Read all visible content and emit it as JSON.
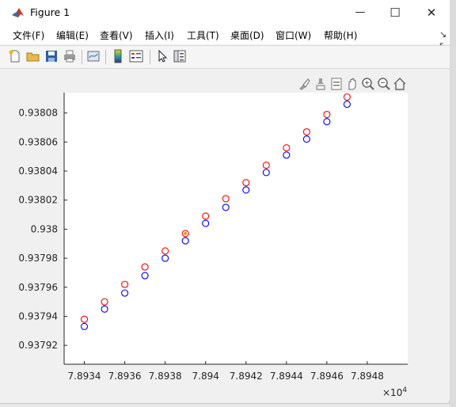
{
  "window": {
    "title": "Figure 1",
    "controls": {
      "minimize": "—",
      "maximize": "☐",
      "close": "✕"
    }
  },
  "menu": {
    "items": [
      "文件(F)",
      "编辑(E)",
      "查看(V)",
      "插入(I)",
      "工具(T)",
      "桌面(D)",
      "窗口(W)",
      "帮助(H)"
    ],
    "overflow": "↘ s,"
  },
  "toolbar": {
    "buttons": [
      "new-figure-icon",
      "open-file-icon",
      "save-icon",
      "print-icon",
      "link-plot-icon",
      "colorbar-icon",
      "legend-icon",
      "pointer-icon",
      "property-inspector-icon"
    ]
  },
  "axes_toolbar": {
    "buttons": [
      "brush-icon",
      "data-tip-icon",
      "restore-view-icon",
      "pan-icon",
      "zoom-in-icon",
      "zoom-out-icon",
      "home-icon"
    ]
  },
  "colors": {
    "series_red": "#ff0000",
    "series_blue": "#0000ff",
    "axis": "#262626",
    "plot_bg": "#ffffff",
    "highlight": "#d4a017"
  },
  "chart_data": {
    "type": "scatter",
    "title": "",
    "xlabel": "",
    "ylabel": "",
    "x_exponent_label": "×10",
    "x_exponent_power": "4",
    "x_ticks": [
      "7.8934",
      "7.8936",
      "7.8938",
      "7.894",
      "7.8942",
      "7.8944",
      "7.8946",
      "7.8948"
    ],
    "y_ticks": [
      "0.93792",
      "0.93794",
      "0.93796",
      "0.93798",
      "0.938",
      "0.93802",
      "0.93804",
      "0.93806",
      "0.93808"
    ],
    "x_tick_values": [
      78934,
      78936,
      78938,
      78940,
      78942,
      78944,
      78946,
      78948
    ],
    "y_tick_values": [
      0.93792,
      0.93794,
      0.93796,
      0.93798,
      0.938,
      0.93802,
      0.93804,
      0.93806,
      0.93808
    ],
    "xlim": [
      78933.0,
      78950.0
    ],
    "ylim": [
      0.937907,
      0.938094
    ],
    "marker": "open-circle",
    "grid": false,
    "series": [
      {
        "color": "#ff0000",
        "x": [
          78934,
          78935,
          78936,
          78937,
          78938,
          78939,
          78940,
          78941,
          78942,
          78943,
          78944,
          78945,
          78946,
          78947
        ],
        "y": [
          0.937938,
          0.93795,
          0.937962,
          0.937974,
          0.937985,
          0.937997,
          0.938009,
          0.938021,
          0.938032,
          0.938044,
          0.938056,
          0.938067,
          0.938079,
          0.938091
        ]
      },
      {
        "color": "#0000ff",
        "x": [
          78934,
          78935,
          78936,
          78937,
          78938,
          78939,
          78940,
          78941,
          78942,
          78943,
          78944,
          78945,
          78946,
          78947
        ],
        "y": [
          0.937933,
          0.937945,
          0.937956,
          0.937968,
          0.93798,
          0.937992,
          0.938004,
          0.938015,
          0.938027,
          0.938039,
          0.938051,
          0.938062,
          0.938074,
          0.938086
        ]
      }
    ],
    "highlighted_point": {
      "x": 78939,
      "y": 0.937997
    }
  }
}
